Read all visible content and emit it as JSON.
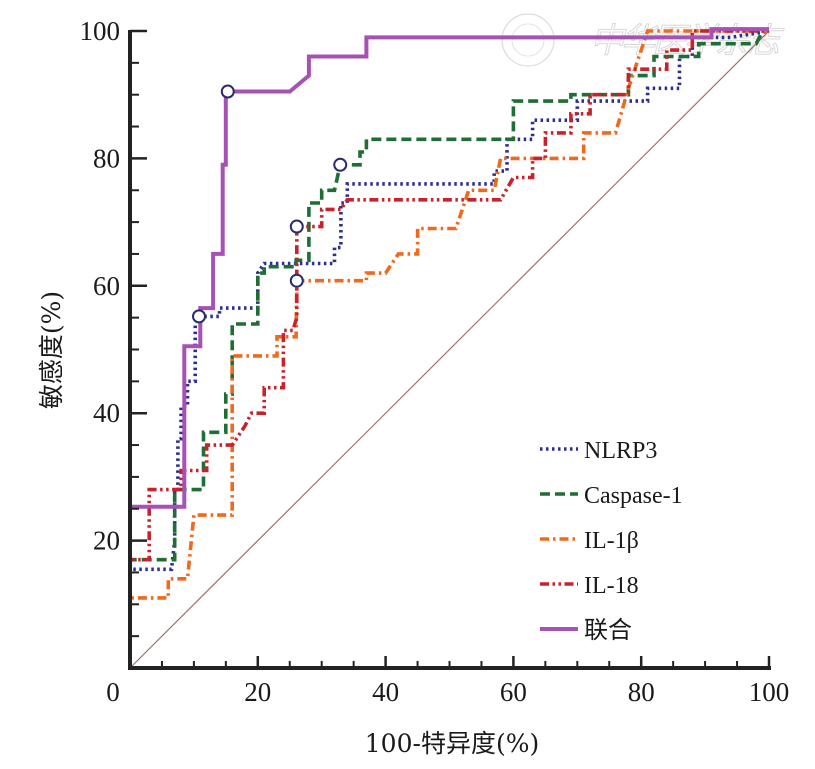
{
  "chart_data": {
    "type": "line",
    "subtype": "roc",
    "title": "",
    "xlabel": "100-特异度(%)",
    "ylabel": "敏感度(%)",
    "xlim": [
      0,
      100
    ],
    "ylim": [
      0,
      100
    ],
    "x_ticks": [
      0,
      20,
      40,
      60,
      80,
      100
    ],
    "y_ticks": [
      20,
      40,
      60,
      80,
      100
    ],
    "minor_tick_step": 5,
    "grid": false,
    "legend_position": "bottom-right",
    "reference_line": {
      "name": "diagonal",
      "points": [
        [
          0,
          0
        ],
        [
          100,
          100
        ]
      ],
      "color": "#a07070"
    },
    "watermark": "中华医学杂志",
    "series": [
      {
        "name": "NLRP3",
        "style": "dotted",
        "color": "#2b2f8f",
        "points": [
          [
            0,
            0
          ],
          [
            0,
            15.5
          ],
          [
            6.5,
            15.5
          ],
          [
            7,
            20
          ],
          [
            7,
            28
          ],
          [
            7.5,
            28
          ],
          [
            7.5,
            36
          ],
          [
            8,
            36
          ],
          [
            8,
            41
          ],
          [
            9,
            41
          ],
          [
            9,
            45
          ],
          [
            10.2,
            45
          ],
          [
            10.2,
            54
          ],
          [
            10.8,
            55.2
          ],
          [
            14,
            55.2
          ],
          [
            14,
            56.5
          ],
          [
            20,
            56.5
          ],
          [
            20,
            62
          ],
          [
            21,
            63.5
          ],
          [
            32,
            63.5
          ],
          [
            32,
            66
          ],
          [
            33,
            66
          ],
          [
            33,
            73
          ],
          [
            34,
            73
          ],
          [
            34,
            76
          ],
          [
            57,
            76
          ],
          [
            57,
            78
          ],
          [
            59,
            78
          ],
          [
            59,
            83
          ],
          [
            63,
            83
          ],
          [
            63,
            86
          ],
          [
            70,
            86
          ],
          [
            70,
            89
          ],
          [
            81,
            89
          ],
          [
            81,
            91
          ],
          [
            86,
            91
          ],
          [
            86,
            96
          ],
          [
            88,
            96
          ],
          [
            88,
            99
          ],
          [
            94,
            99
          ],
          [
            100,
            100
          ]
        ],
        "cutoff_point": [
          10.8,
          55.2
        ]
      },
      {
        "name": "Caspase-1",
        "style": "dashed",
        "color": "#1f6e34",
        "points": [
          [
            0,
            0
          ],
          [
            0,
            17
          ],
          [
            7,
            17
          ],
          [
            7,
            28
          ],
          [
            11.5,
            28
          ],
          [
            11.5,
            37
          ],
          [
            15,
            37
          ],
          [
            15,
            43
          ],
          [
            16,
            43
          ],
          [
            16,
            54
          ],
          [
            20,
            54
          ],
          [
            20,
            62
          ],
          [
            21,
            62
          ],
          [
            21,
            63
          ],
          [
            26,
            63
          ],
          [
            26,
            64
          ],
          [
            28,
            64
          ],
          [
            28,
            73
          ],
          [
            30,
            73
          ],
          [
            30,
            75
          ],
          [
            32,
            75
          ],
          [
            32.9,
            79
          ],
          [
            36,
            79
          ],
          [
            36,
            81
          ],
          [
            37,
            81
          ],
          [
            37,
            83
          ],
          [
            60,
            83
          ],
          [
            60,
            89
          ],
          [
            69,
            89
          ],
          [
            69,
            90
          ],
          [
            78,
            90
          ],
          [
            78,
            93
          ],
          [
            82,
            93
          ],
          [
            82,
            96
          ],
          [
            89,
            96
          ],
          [
            89,
            98
          ],
          [
            98,
            98
          ],
          [
            99,
            100
          ],
          [
            100,
            100
          ]
        ],
        "cutoff_point": [
          32.9,
          79
        ]
      },
      {
        "name": "IL-1β",
        "style": "dash-dot",
        "color": "#ee6a1f",
        "points": [
          [
            0,
            0
          ],
          [
            0,
            11
          ],
          [
            6,
            11
          ],
          [
            6,
            14
          ],
          [
            9,
            14
          ],
          [
            10,
            24
          ],
          [
            16,
            24
          ],
          [
            16,
            49
          ],
          [
            23,
            49
          ],
          [
            23,
            52
          ],
          [
            26,
            52
          ],
          [
            26.1,
            60.8
          ],
          [
            37,
            60.8
          ],
          [
            37,
            62
          ],
          [
            40,
            62
          ],
          [
            42,
            65
          ],
          [
            45,
            65
          ],
          [
            45,
            69
          ],
          [
            51,
            69
          ],
          [
            53,
            75
          ],
          [
            57,
            75
          ],
          [
            58,
            80
          ],
          [
            71,
            80
          ],
          [
            71,
            84
          ],
          [
            76,
            84
          ],
          [
            78,
            91
          ],
          [
            81,
            100
          ],
          [
            100,
            100
          ]
        ],
        "cutoff_point": [
          26.1,
          60.8
        ]
      },
      {
        "name": "IL-18",
        "style": "dash-dot-dot",
        "color": "#c8232c",
        "points": [
          [
            0,
            0
          ],
          [
            0,
            17
          ],
          [
            3,
            17
          ],
          [
            3,
            28
          ],
          [
            8,
            28
          ],
          [
            8,
            31
          ],
          [
            12,
            31
          ],
          [
            12,
            35
          ],
          [
            16,
            35
          ],
          [
            18,
            38
          ],
          [
            19,
            40
          ],
          [
            21,
            40
          ],
          [
            21,
            44
          ],
          [
            24,
            44
          ],
          [
            24,
            53
          ],
          [
            25.5,
            53
          ],
          [
            26.1,
            55
          ],
          [
            26.1,
            69.3
          ],
          [
            30,
            69.3
          ],
          [
            30,
            72
          ],
          [
            33,
            72
          ],
          [
            34,
            73.5
          ],
          [
            58,
            73.5
          ],
          [
            60,
            77
          ],
          [
            63,
            77
          ],
          [
            63,
            80
          ],
          [
            65,
            80
          ],
          [
            65,
            84
          ],
          [
            69,
            84
          ],
          [
            69,
            87
          ],
          [
            72,
            87
          ],
          [
            72,
            90
          ],
          [
            78,
            90
          ],
          [
            78,
            94
          ],
          [
            84,
            94
          ],
          [
            84,
            97
          ],
          [
            88,
            97
          ],
          [
            88,
            100
          ],
          [
            100,
            100
          ]
        ],
        "cutoff_point": [
          26.1,
          69.3
        ]
      },
      {
        "name": "联合",
        "style": "solid",
        "color": "#a651b3",
        "points": [
          [
            0,
            0
          ],
          [
            0,
            25.3
          ],
          [
            8.5,
            25.3
          ],
          [
            8.5,
            50.5
          ],
          [
            11,
            50.5
          ],
          [
            11,
            56.5
          ],
          [
            13,
            56.5
          ],
          [
            13,
            65
          ],
          [
            14.5,
            65
          ],
          [
            14.5,
            79
          ],
          [
            15,
            79
          ],
          [
            15,
            90.5
          ],
          [
            25,
            90.5
          ],
          [
            28,
            93
          ],
          [
            28,
            96
          ],
          [
            37,
            96
          ],
          [
            37,
            99
          ],
          [
            91,
            99
          ],
          [
            91,
            100.3
          ],
          [
            100,
            100.3
          ]
        ],
        "cutoff_point": [
          15.3,
          90.5
        ]
      }
    ]
  }
}
